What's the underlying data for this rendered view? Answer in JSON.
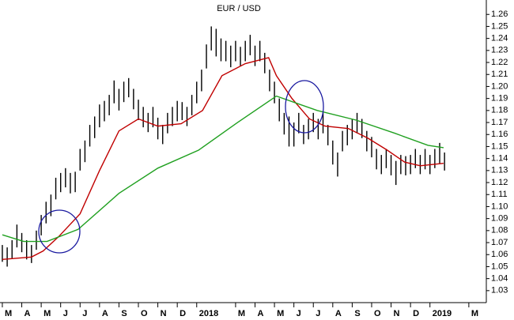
{
  "chart_data": {
    "type": "ohlc",
    "title": "EUR / USD",
    "xlim": [
      -0.12,
      24.9
    ],
    "ylim": [
      1.022,
      1.272
    ],
    "xticks": [
      {
        "value": 0,
        "label": "M"
      },
      {
        "value": 1,
        "label": "A"
      },
      {
        "value": 2,
        "label": "M"
      },
      {
        "value": 3,
        "label": "J"
      },
      {
        "value": 4,
        "label": "J"
      },
      {
        "value": 5,
        "label": "A"
      },
      {
        "value": 6,
        "label": "S"
      },
      {
        "value": 7,
        "label": "O"
      },
      {
        "value": 8,
        "label": "N"
      },
      {
        "value": 9,
        "label": "D"
      },
      {
        "value": 10,
        "label": "2018"
      },
      {
        "value": 12,
        "label": "M"
      },
      {
        "value": 13,
        "label": "A"
      },
      {
        "value": 14,
        "label": "M"
      },
      {
        "value": 15,
        "label": "J"
      },
      {
        "value": 16,
        "label": "J"
      },
      {
        "value": 17,
        "label": "A"
      },
      {
        "value": 18,
        "label": "S"
      },
      {
        "value": 19,
        "label": "O"
      },
      {
        "value": 20,
        "label": "N"
      },
      {
        "value": 21,
        "label": "D"
      },
      {
        "value": 22,
        "label": "2019"
      },
      {
        "value": 24,
        "label": "M"
      }
    ],
    "yticks": [
      1.03,
      1.04,
      1.05,
      1.06,
      1.07,
      1.08,
      1.09,
      {
        "value": 1.1,
        "label": "1.10"
      },
      1.11,
      1.12,
      1.13,
      1.14,
      1.15,
      1.16,
      1.17,
      1.18,
      1.19,
      {
        "value": 1.2,
        "label": "1.20"
      },
      1.21,
      1.22,
      1.23,
      1.24,
      1.25,
      1.26
    ],
    "grid": false,
    "bars": {
      "color": "#000000",
      "x": [
        0,
        0.25,
        0.5,
        0.75,
        1,
        1.25,
        1.5,
        1.75,
        2,
        2.25,
        2.5,
        2.75,
        3,
        3.25,
        3.5,
        3.75,
        4,
        4.25,
        4.5,
        4.75,
        5,
        5.25,
        5.5,
        5.75,
        6,
        6.25,
        6.5,
        6.75,
        7,
        7.25,
        7.5,
        7.75,
        8,
        8.25,
        8.5,
        8.75,
        9,
        9.25,
        9.5,
        9.75,
        10,
        10.25,
        10.5,
        10.75,
        11,
        11.25,
        11.5,
        11.75,
        12,
        12.25,
        12.5,
        12.75,
        13,
        13.25,
        13.5,
        13.75,
        14,
        14.25,
        14.5,
        14.75,
        15,
        15.25,
        15.5,
        15.75,
        16,
        16.25,
        16.5,
        16.75,
        17,
        17.25,
        17.5,
        17.75,
        18,
        18.25,
        18.5,
        18.75,
        19,
        19.25,
        19.5,
        19.75,
        20,
        20.25,
        20.5,
        20.75,
        21,
        21.25,
        21.5,
        21.75,
        22,
        22.25,
        22.5,
        22.75
      ],
      "high": [
        1.068,
        1.066,
        1.072,
        1.085,
        1.078,
        1.072,
        1.068,
        1.08,
        1.093,
        1.104,
        1.11,
        1.124,
        1.128,
        1.132,
        1.128,
        1.129,
        1.148,
        1.155,
        1.168,
        1.175,
        1.185,
        1.188,
        1.193,
        1.205,
        1.198,
        1.204,
        1.207,
        1.198,
        1.189,
        1.183,
        1.178,
        1.183,
        1.174,
        1.168,
        1.178,
        1.183,
        1.188,
        1.187,
        1.183,
        1.193,
        1.204,
        1.214,
        1.235,
        1.25,
        1.248,
        1.24,
        1.238,
        1.234,
        1.238,
        1.233,
        1.238,
        1.243,
        1.234,
        1.238,
        1.228,
        1.214,
        1.204,
        1.19,
        1.178,
        1.175,
        1.17,
        1.178,
        1.168,
        1.173,
        1.178,
        1.173,
        1.178,
        1.168,
        1.155,
        1.145,
        1.163,
        1.168,
        1.173,
        1.178,
        1.173,
        1.163,
        1.158,
        1.148,
        1.143,
        1.148,
        1.143,
        1.138,
        1.143,
        1.142,
        1.143,
        1.148,
        1.143,
        1.148,
        1.143,
        1.148,
        1.153,
        1.145
      ],
      "low": [
        1.054,
        1.05,
        1.057,
        1.066,
        1.062,
        1.056,
        1.053,
        1.064,
        1.076,
        1.086,
        1.092,
        1.106,
        1.112,
        1.116,
        1.111,
        1.112,
        1.13,
        1.137,
        1.15,
        1.157,
        1.166,
        1.171,
        1.176,
        1.186,
        1.18,
        1.187,
        1.191,
        1.181,
        1.172,
        1.166,
        1.162,
        1.166,
        1.156,
        1.152,
        1.161,
        1.167,
        1.171,
        1.172,
        1.167,
        1.176,
        1.186,
        1.196,
        1.215,
        1.23,
        1.225,
        1.221,
        1.221,
        1.216,
        1.221,
        1.217,
        1.221,
        1.226,
        1.217,
        1.221,
        1.211,
        1.196,
        1.186,
        1.171,
        1.16,
        1.15,
        1.15,
        1.161,
        1.152,
        1.156,
        1.162,
        1.156,
        1.161,
        1.151,
        1.135,
        1.125,
        1.146,
        1.151,
        1.156,
        1.161,
        1.157,
        1.146,
        1.141,
        1.131,
        1.127,
        1.132,
        1.126,
        1.118,
        1.127,
        1.126,
        1.127,
        1.132,
        1.127,
        1.131,
        1.127,
        1.132,
        1.136,
        1.13
      ]
    },
    "moving_averages": [
      {
        "color": "#c00000",
        "x": [
          0,
          1.5,
          2.1,
          2.9,
          4.0,
          5.0,
          6.0,
          7.0,
          8.0,
          9.2,
          10.3,
          11.3,
          12.5,
          13.7,
          14.1,
          14.9,
          15.8,
          16.6,
          17.8,
          18.8,
          19.8,
          20.7,
          21.5,
          22.7
        ],
        "values": [
          1.056,
          1.058,
          1.063,
          1.075,
          1.094,
          1.13,
          1.163,
          1.173,
          1.167,
          1.169,
          1.18,
          1.209,
          1.219,
          1.224,
          1.209,
          1.19,
          1.173,
          1.167,
          1.165,
          1.157,
          1.147,
          1.137,
          1.134,
          1.136
        ]
      },
      {
        "color": "#20a020",
        "x": [
          0,
          1.1,
          2.3,
          3.9,
          6.0,
          8.0,
          10.1,
          12.1,
          14.1,
          16.2,
          18.2,
          20.2,
          21.9,
          22.7
        ],
        "values": [
          1.0765,
          1.071,
          1.071,
          1.081,
          1.111,
          1.132,
          1.147,
          1.17,
          1.192,
          1.18,
          1.172,
          1.161,
          1.151,
          1.149
        ]
      }
    ]
  }
}
